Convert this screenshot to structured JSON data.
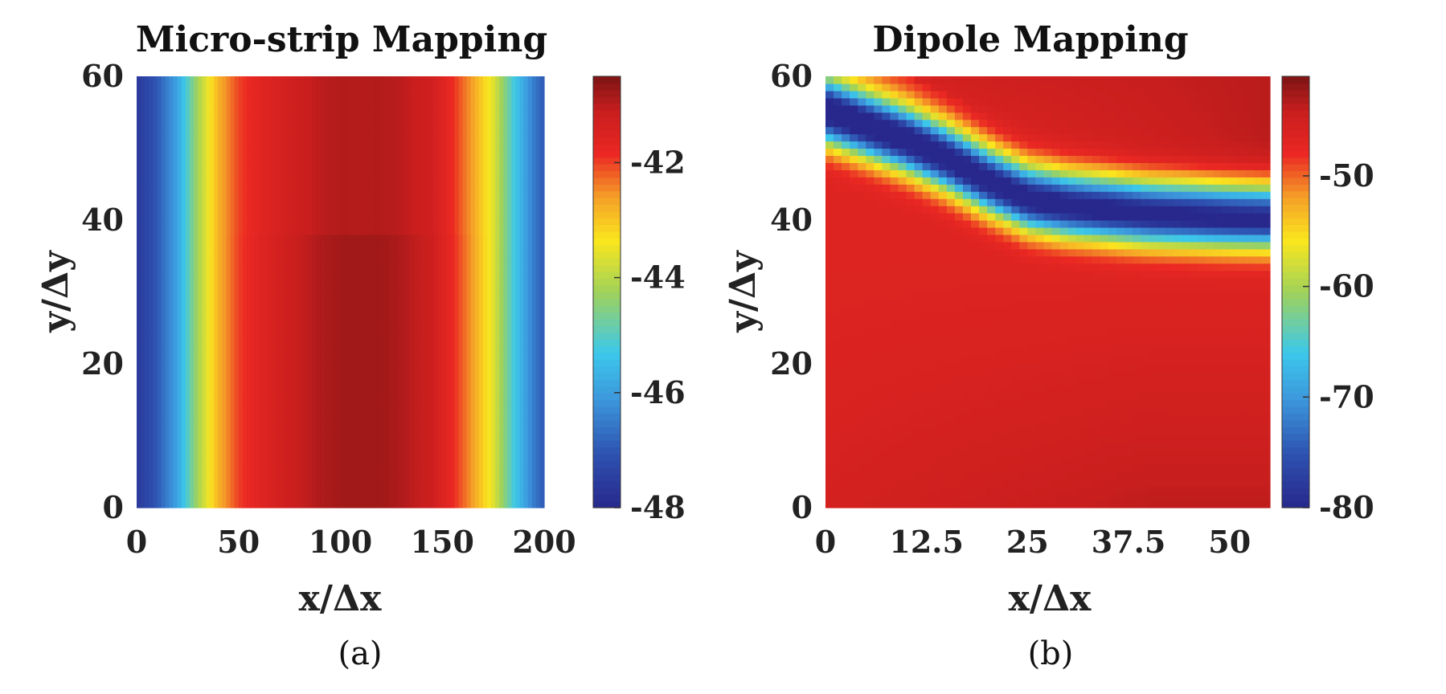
{
  "chart_data": [
    {
      "type": "heatmap",
      "title": "Micro-strip Mapping",
      "xlabel": "x/Δx",
      "ylabel": "y/Δy",
      "caption": "(a)",
      "xlim": [
        0,
        200
      ],
      "ylim": [
        0,
        60
      ],
      "xticks": [
        "0",
        "50",
        "100",
        "150",
        "200"
      ],
      "yticks": [
        "0",
        "20",
        "40",
        "60"
      ],
      "colorbar": {
        "range": [
          -48,
          -40.5
        ],
        "ticks": [
          "-42",
          "-44",
          "-46",
          "-48"
        ],
        "tick_values": [
          -42,
          -44,
          -46,
          -48
        ]
      },
      "colormap": "jet",
      "field_profile_x": [
        0,
        10,
        20,
        30,
        40,
        50,
        60,
        75,
        90,
        100,
        110,
        120,
        130,
        145,
        155,
        165,
        175,
        185,
        195,
        200
      ],
      "field_profile_value": [
        -47.6,
        -47.0,
        -45.9,
        -44.2,
        -42.8,
        -42.0,
        -41.6,
        -41.2,
        -40.9,
        -40.8,
        -40.8,
        -40.8,
        -40.9,
        -41.2,
        -41.8,
        -42.6,
        -43.6,
        -45.2,
        -46.5,
        -47.0
      ]
    },
    {
      "type": "heatmap",
      "title": "Dipole Mapping",
      "xlabel": "x/Δx",
      "ylabel": "y/Δy",
      "caption": "(b)",
      "xlim": [
        0,
        55
      ],
      "ylim": [
        0,
        60
      ],
      "xticks": [
        "0",
        "12.5",
        "25",
        "37.5",
        "50"
      ],
      "xtick_values": [
        0,
        12.5,
        25,
        37.5,
        50
      ],
      "yticks": [
        "0",
        "20",
        "40",
        "60"
      ],
      "colorbar": {
        "range": [
          -80,
          -41
        ],
        "ticks": [
          "-50",
          "-60",
          "-70",
          "-80"
        ],
        "tick_values": [
          -50,
          -60,
          -70,
          -80
        ]
      },
      "colormap": "jet",
      "null_ridge_x": [
        0,
        5,
        10,
        15,
        20,
        25,
        30,
        35,
        40,
        45,
        50,
        55
      ],
      "null_ridge_y": [
        55,
        53,
        51,
        48.5,
        45.5,
        43,
        42,
        41.5,
        41,
        40.8,
        40.6,
        40.5
      ]
    }
  ]
}
